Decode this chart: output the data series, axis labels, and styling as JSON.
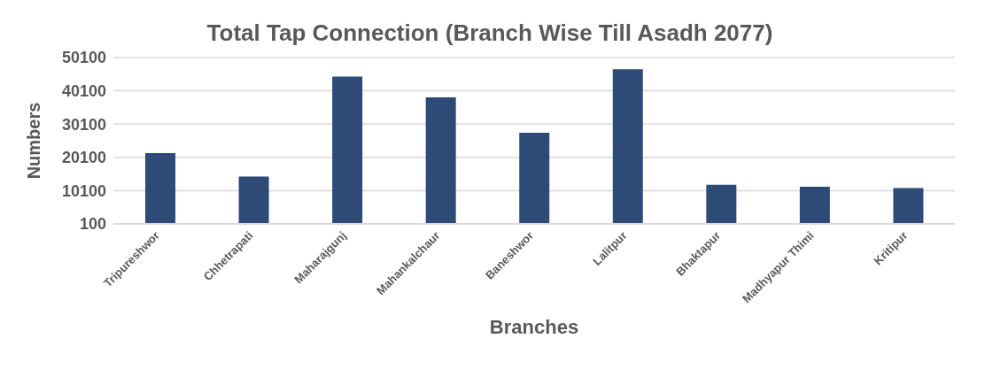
{
  "chart_data": {
    "type": "bar",
    "title": "Total Tap Connection (Branch Wise Till Asadh 2077)",
    "xlabel": "Branches",
    "ylabel": "Numbers",
    "categories": [
      "Tripureshwor",
      "Chhetrapati",
      "Maharajgunj",
      "Mahankalchaur",
      "Baneshwor",
      "Lalitpur",
      "Bhaktapur",
      "Madhyapur Thimi",
      "Kritipur"
    ],
    "values": [
      21400,
      14300,
      44400,
      38100,
      27500,
      46600,
      11900,
      11300,
      10900
    ],
    "color": "#2e4b77",
    "ylim": [
      100,
      50100
    ],
    "yticks": [
      100,
      10100,
      20100,
      30100,
      40100,
      50100
    ],
    "grid": "y"
  }
}
